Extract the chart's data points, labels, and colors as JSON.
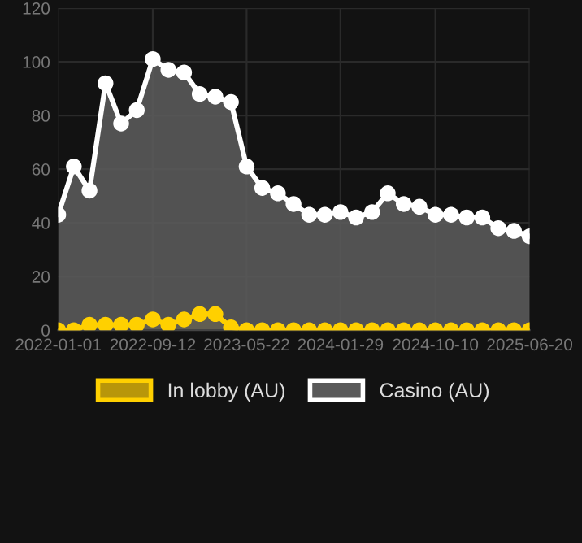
{
  "chart_data": {
    "type": "area",
    "marker": "circle",
    "grid": true,
    "legend": "bottom",
    "x": [
      "2022-01-01",
      "2022-02-12",
      "2022-03-26",
      "2022-05-08",
      "2022-06-19",
      "2022-07-31",
      "2022-09-12",
      "2022-10-24",
      "2022-12-05",
      "2023-01-16",
      "2023-02-27",
      "2023-04-10",
      "2023-05-22",
      "2023-07-03",
      "2023-08-14",
      "2023-09-25",
      "2023-11-06",
      "2023-12-18",
      "2024-01-29",
      "2024-03-11",
      "2024-04-23",
      "2024-06-04",
      "2024-07-17",
      "2024-08-28",
      "2024-10-10",
      "2024-11-21",
      "2025-01-02",
      "2025-02-13",
      "2025-03-28",
      "2025-05-09",
      "2025-06-20"
    ],
    "series": [
      {
        "name": "In lobby (AU)",
        "color": "#ffd000",
        "values": [
          0,
          0,
          2,
          2,
          2,
          2,
          4,
          2,
          4,
          6,
          6,
          1,
          0,
          0,
          0,
          0,
          0,
          0,
          0,
          0,
          0,
          0,
          0,
          0,
          0,
          0,
          0,
          0,
          0,
          0,
          0
        ]
      },
      {
        "name": "Casino (AU)",
        "color": "#ffffff",
        "values": [
          43,
          61,
          52,
          92,
          77,
          82,
          101,
          97,
          96,
          88,
          87,
          85,
          61,
          53,
          51,
          47,
          43,
          43,
          44,
          42,
          44,
          51,
          47,
          46,
          43,
          43,
          42,
          42,
          38,
          37,
          35
        ]
      }
    ],
    "xlim": [
      "2022-01-01",
      "2025-06-20"
    ],
    "xticks": [
      {
        "value": "2022-01-01",
        "label": "2022-01-01"
      },
      {
        "value": "2022-09-12",
        "label": "2022-09-12"
      },
      {
        "value": "2023-05-22",
        "label": "2023-05-22"
      },
      {
        "value": "2024-01-29",
        "label": "2024-01-29"
      },
      {
        "value": "2024-10-10",
        "label": "2024-10-10"
      },
      {
        "value": "2025-06-20",
        "label": "2025-06-20"
      }
    ],
    "ylim": [
      0,
      120
    ],
    "yticks": [
      0,
      20,
      40,
      60,
      80,
      100,
      120
    ]
  }
}
